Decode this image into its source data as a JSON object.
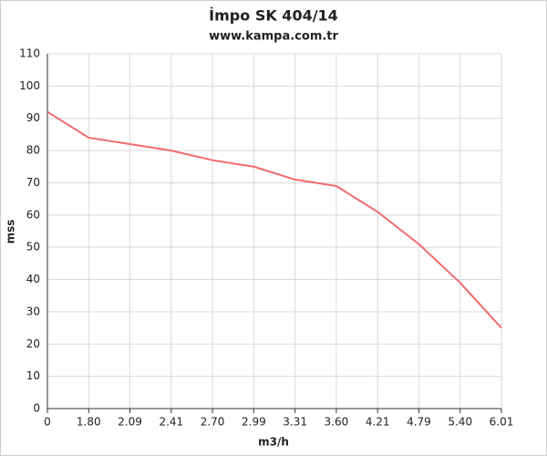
{
  "chart_data": {
    "type": "line",
    "title": "İmpo SK 404/14",
    "subtitle": "www.kampa.com.tr",
    "x_label": "m3/h",
    "y_label": "mss",
    "categories": [
      "0",
      "1.80",
      "2.09",
      "2.41",
      "2.70",
      "2.99",
      "3.31",
      "3.60",
      "4.21",
      "4.79",
      "5.40",
      "6.01"
    ],
    "values": [
      92,
      84,
      82,
      80,
      77,
      75,
      71,
      69,
      61,
      51,
      39,
      25
    ],
    "color": "#f26b6b",
    "ylim": [
      0,
      110
    ],
    "yticks": [
      0,
      10,
      20,
      30,
      40,
      50,
      60,
      70,
      80,
      90,
      100,
      110
    ],
    "grid": true
  }
}
